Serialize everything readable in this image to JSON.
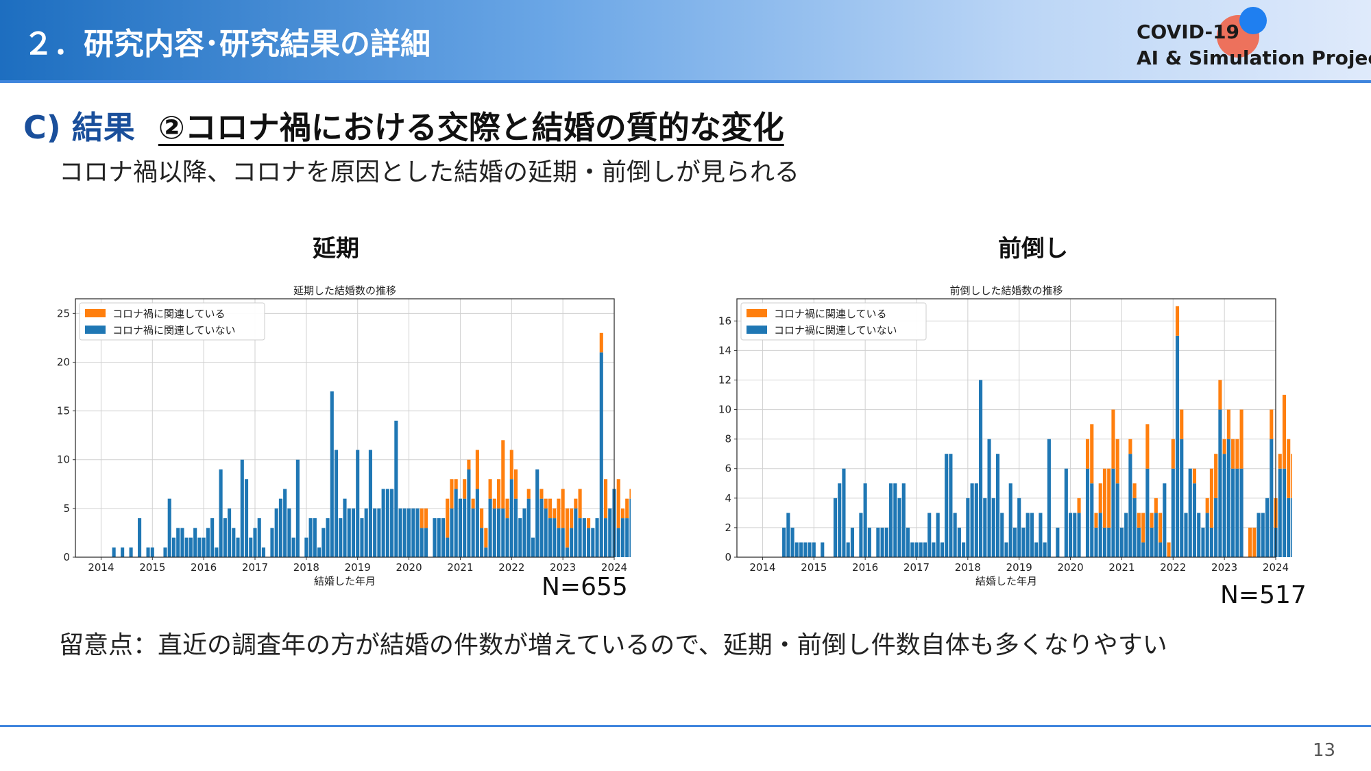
{
  "header": {
    "title": "２．研究内容･研究結果の詳細",
    "logo_line1": "COVID-19",
    "logo_line2": "AI & Simulation Project"
  },
  "section": {
    "label": "C) 結果",
    "subtitle": "②コロナ禍における交際と結婚の質的な変化"
  },
  "lead": "コロナ禍以降、コロナを原因とした結婚の延期・前倒しが見られる",
  "panels": [
    {
      "heading": "延期",
      "n_label": "N=655"
    },
    {
      "heading": "前倒し",
      "n_label": "N=517"
    }
  ],
  "note": "留意点：直近の調査年の方が結婚の件数が増えているので、延期・前倒し件数自体も多くなりやすい",
  "page_number": "13",
  "colors": {
    "related": "#ff7f0e",
    "unrelated": "#1f77b4",
    "header_accent": "#3f85dd"
  },
  "chart_data": [
    {
      "type": "bar",
      "stacked": true,
      "title": "延期した結婚数の推移",
      "xlabel": "結婚した年月",
      "ylabel": "",
      "xlim": [
        2013.5,
        2024.0
      ],
      "ylim": [
        0,
        26.5
      ],
      "xticks": [
        "2014",
        "2015",
        "2016",
        "2017",
        "2018",
        "2019",
        "2020",
        "2021",
        "2022",
        "2023",
        "2024"
      ],
      "yticks": [
        0,
        5,
        10,
        15,
        20,
        25
      ],
      "grid": true,
      "legend_position": "top-left",
      "series": [
        {
          "name": "コロナ禍に関連している",
          "values": [
            0,
            0,
            0,
            0,
            0,
            0,
            0,
            0,
            0,
            0,
            0,
            0,
            0,
            0,
            0,
            0,
            0,
            0,
            0,
            0,
            0,
            0,
            0,
            0,
            0,
            0,
            0,
            0,
            0,
            0,
            0,
            0,
            0,
            0,
            0,
            0,
            0,
            0,
            0,
            0,
            0,
            0,
            0,
            0,
            0,
            0,
            0,
            0,
            0,
            0,
            0,
            0,
            0,
            0,
            0,
            0,
            0,
            0,
            0,
            0,
            0,
            0,
            0,
            0,
            0,
            0,
            0,
            0,
            0,
            0,
            0,
            0,
            0,
            0,
            0,
            2,
            2,
            0,
            0,
            0,
            0,
            4,
            3,
            1,
            0,
            2,
            1,
            1,
            4,
            2,
            2,
            2,
            1,
            3,
            7,
            2,
            3,
            3,
            0,
            0,
            1,
            0,
            0,
            1,
            1,
            2,
            1,
            3,
            4,
            4,
            2,
            1,
            3,
            0,
            1,
            0,
            0,
            2,
            4,
            0,
            0,
            5,
            1,
            2,
            1,
            7,
            1,
            1
          ]
        },
        {
          "name": "コロナ禍に関連していない",
          "values": [
            0,
            0,
            0,
            1,
            0,
            1,
            0,
            1,
            0,
            4,
            0,
            1,
            1,
            0,
            0,
            1,
            6,
            2,
            3,
            3,
            2,
            2,
            3,
            2,
            2,
            3,
            4,
            1,
            9,
            4,
            5,
            3,
            2,
            10,
            8,
            2,
            3,
            4,
            1,
            0,
            3,
            5,
            6,
            7,
            5,
            2,
            10,
            0,
            2,
            4,
            4,
            1,
            3,
            4,
            17,
            11,
            4,
            6,
            5,
            5,
            11,
            4,
            5,
            11,
            5,
            5,
            7,
            7,
            7,
            14,
            5,
            5,
            5,
            5,
            5,
            3,
            3,
            0,
            4,
            4,
            4,
            2,
            5,
            7,
            6,
            6,
            9,
            5,
            7,
            3,
            1,
            6,
            5,
            5,
            5,
            4,
            8,
            6,
            4,
            5,
            6,
            2,
            9,
            6,
            5,
            4,
            4,
            3,
            3,
            1,
            3,
            5,
            4,
            4,
            3,
            3,
            4,
            21,
            4,
            5,
            7,
            3,
            4,
            4,
            6,
            6,
            2,
            0
          ]
        }
      ]
    },
    {
      "type": "bar",
      "stacked": true,
      "title": "前倒しした結婚数の推移",
      "xlabel": "結婚した年月",
      "ylabel": "",
      "xlim": [
        2013.5,
        2024.0
      ],
      "ylim": [
        0,
        17.5
      ],
      "xticks": [
        "2014",
        "2015",
        "2016",
        "2017",
        "2018",
        "2019",
        "2020",
        "2021",
        "2022",
        "2023",
        "2024"
      ],
      "yticks": [
        0,
        2,
        4,
        6,
        8,
        10,
        12,
        14,
        16
      ],
      "grid": true,
      "legend_position": "top-left",
      "series": [
        {
          "name": "コロナ禍に関連している",
          "values": [
            0,
            0,
            0,
            0,
            0,
            0,
            0,
            0,
            0,
            0,
            0,
            0,
            0,
            0,
            0,
            0,
            0,
            0,
            0,
            0,
            0,
            0,
            0,
            0,
            0,
            0,
            0,
            0,
            0,
            0,
            0,
            0,
            0,
            0,
            0,
            0,
            0,
            0,
            0,
            0,
            0,
            0,
            0,
            0,
            0,
            0,
            0,
            0,
            0,
            0,
            0,
            0,
            0,
            0,
            0,
            0,
            0,
            0,
            0,
            0,
            0,
            0,
            0,
            0,
            0,
            0,
            0,
            0,
            0,
            0,
            0,
            0,
            0,
            0,
            1,
            0,
            2,
            4,
            1,
            2,
            4,
            4,
            4,
            3,
            0,
            0,
            1,
            1,
            1,
            2,
            3,
            1,
            1,
            2,
            0,
            1,
            2,
            2,
            2,
            0,
            0,
            1,
            0,
            0,
            1,
            4,
            3,
            2,
            1,
            2,
            2,
            2,
            4,
            0,
            2,
            2,
            0,
            0,
            0,
            2,
            2,
            1,
            5,
            4,
            3,
            3,
            4,
            5
          ]
        },
        {
          "name": "コロナ禍に関連していない",
          "values": [
            0,
            0,
            0,
            0,
            0,
            2,
            3,
            2,
            1,
            1,
            1,
            1,
            1,
            0,
            1,
            0,
            0,
            4,
            5,
            6,
            1,
            2,
            0,
            3,
            5,
            2,
            0,
            2,
            2,
            2,
            5,
            5,
            4,
            5,
            2,
            1,
            1,
            1,
            1,
            3,
            1,
            3,
            1,
            7,
            7,
            3,
            2,
            1,
            4,
            5,
            5,
            12,
            4,
            8,
            4,
            7,
            3,
            1,
            5,
            2,
            4,
            2,
            3,
            3,
            1,
            3,
            1,
            8,
            0,
            2,
            0,
            6,
            3,
            3,
            3,
            0,
            6,
            5,
            2,
            3,
            2,
            2,
            6,
            5,
            2,
            3,
            7,
            4,
            2,
            1,
            6,
            2,
            3,
            1,
            5,
            0,
            6,
            15,
            8,
            3,
            6,
            5,
            3,
            2,
            3,
            2,
            4,
            10,
            7,
            8,
            6,
            6,
            6,
            0,
            0,
            0,
            3,
            3,
            4,
            8,
            2,
            6,
            6,
            4,
            4,
            6,
            4,
            2
          ]
        }
      ]
    }
  ]
}
